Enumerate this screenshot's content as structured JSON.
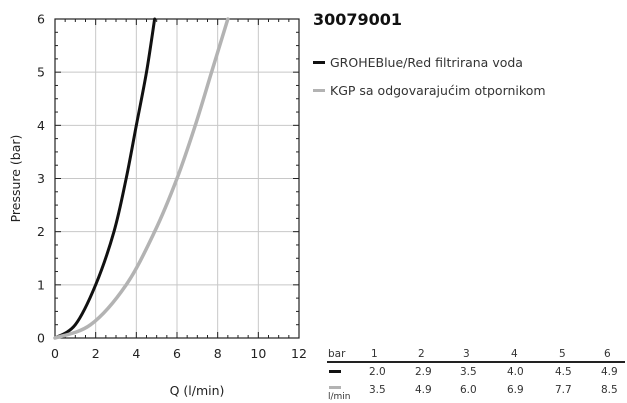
{
  "chart_data": {
    "type": "line",
    "title": "30079001",
    "xlabel": "Q (l/min)",
    "ylabel": "Pressure (bar)",
    "xlim": [
      0,
      12
    ],
    "ylim": [
      0,
      6
    ],
    "xticks": [
      "0",
      "2",
      "4",
      "6",
      "8",
      "10",
      "12"
    ],
    "yticks": [
      "0",
      "1",
      "2",
      "3",
      "4",
      "5",
      "6"
    ],
    "grid": true,
    "legend_placement": "right",
    "series": [
      {
        "name": "GROHEBlue/Red filtrirana voda",
        "color": "#111111",
        "x": [
          0,
          1.0,
          2.0,
          2.9,
          3.5,
          4.0,
          4.5,
          4.9
        ],
        "y": [
          0,
          0.25,
          1,
          2,
          3,
          4,
          5,
          6
        ]
      },
      {
        "name": "KGP sa odgovarajućim otpornikom",
        "color": "#b3b3b3",
        "x": [
          0,
          1.75,
          3.5,
          4.9,
          6.0,
          6.9,
          7.7,
          8.5
        ],
        "y": [
          0,
          0.25,
          1,
          2,
          3,
          4,
          5,
          6
        ]
      }
    ]
  },
  "table": {
    "header_label": "bar",
    "units_label": "l/min",
    "pressures": [
      "1",
      "2",
      "3",
      "4",
      "5",
      "6"
    ],
    "rows": [
      {
        "color": "#111111",
        "values": [
          "2.0",
          "2.9",
          "3.5",
          "4.0",
          "4.5",
          "4.9"
        ]
      },
      {
        "color": "#b3b3b3",
        "values": [
          "3.5",
          "4.9",
          "6.0",
          "6.9",
          "7.7",
          "8.5"
        ]
      }
    ]
  }
}
